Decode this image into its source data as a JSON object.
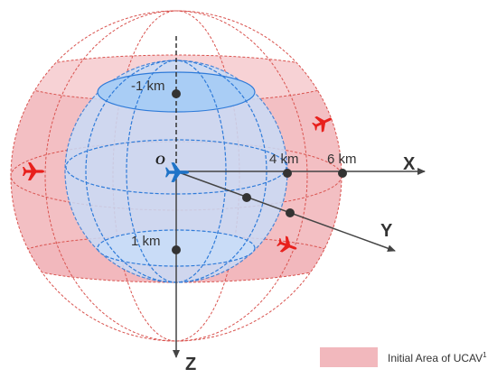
{
  "labels": {
    "top_marker": "-1 km",
    "bottom_marker": "1 km",
    "x_marker_inner": "4 km",
    "x_marker_outer": "6 km",
    "origin": "O",
    "x_axis": "X",
    "y_axis": "Y",
    "z_axis": "Z"
  },
  "legend": {
    "label": "Initial Area of UCAV",
    "superscript": "1"
  },
  "colors": {
    "outer_region_fill": "#f2b8bd",
    "outer_region_stroke": "#d9534f",
    "inner_sphere_fill": "#c9dcf7",
    "inner_sphere_stroke": "#2f7bd9",
    "axis": "#444444",
    "plane_red": "#e8201c",
    "plane_blue": "#1e73c8"
  },
  "icons": {
    "center_aircraft": "airplane-icon-blue",
    "left_aircraft": "airplane-icon-red",
    "right_upper_aircraft": "airplane-icon-red",
    "right_lower_aircraft": "airplane-icon-red"
  }
}
